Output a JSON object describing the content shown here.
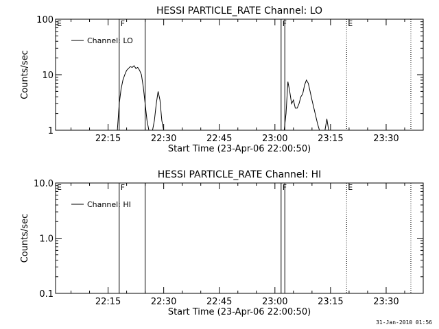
{
  "chart_data": [
    {
      "type": "line",
      "title": "HESSI PARTICLE_RATE Channel: LO",
      "xlabel": "Start Time (23-Apr-06 22:00:50)",
      "ylabel": "Counts/sec",
      "y_scale": "log",
      "ylim": [
        1,
        100
      ],
      "y_ticks": [
        1,
        10,
        100
      ],
      "y_tick_labels": [
        "1",
        "10",
        "100"
      ],
      "xlim": [
        "22:00:50",
        "23:40:00"
      ],
      "x_ticks": [
        "22:15",
        "22:30",
        "22:45",
        "23:00",
        "23:15",
        "23:30"
      ],
      "legend": {
        "placement": "top-left",
        "entries": [
          "Channel: LO"
        ]
      },
      "series": [
        {
          "name": "Channel: LO",
          "x": [
            "22:17:30",
            "22:18:00",
            "22:18:30",
            "22:19:00",
            "22:19:30",
            "22:20:00",
            "22:20:30",
            "22:21:00",
            "22:21:30",
            "22:22:00",
            "22:22:30",
            "22:23:00",
            "22:23:30",
            "22:24:00",
            "22:24:30",
            "22:25:00",
            "22:25:30",
            "22:26:00",
            "22:26:30",
            "22:27:00",
            "22:27:30",
            "22:28:00",
            "22:28:30",
            "22:29:00",
            "22:29:30",
            "22:30:00",
            "22:30:30",
            "22:31:00",
            "23:02:30",
            "23:03:00",
            "23:03:30",
            "23:04:00",
            "23:04:30",
            "23:05:00",
            "23:05:30",
            "23:06:00",
            "23:06:30",
            "23:07:00",
            "23:07:30",
            "23:08:00",
            "23:08:30",
            "23:09:00",
            "23:09:30",
            "23:10:00",
            "23:10:30",
            "23:11:00",
            "23:11:30",
            "23:12:00",
            "23:12:30",
            "23:13:00",
            "23:13:30",
            "23:14:00",
            "23:14:30",
            "23:15:00"
          ],
          "values": [
            1,
            3,
            5.5,
            8,
            10,
            12,
            13,
            14,
            13.5,
            14.5,
            13,
            13.5,
            12,
            10,
            6,
            3,
            1.5,
            1,
            1,
            1,
            1.5,
            3,
            5,
            3.5,
            1.5,
            1,
            null,
            null,
            1,
            2,
            7.5,
            5,
            3,
            3.5,
            2.5,
            2.5,
            3,
            4,
            4.5,
            6.5,
            8,
            7,
            5,
            3.5,
            2.5,
            1.8,
            1.3,
            1,
            null,
            null,
            1,
            1.6,
            1,
            null
          ]
        }
      ],
      "markers": [
        {
          "label": "E",
          "time": "22:00:50",
          "style": "none"
        },
        {
          "label": "F",
          "time": "22:18:00",
          "style": "solid"
        },
        {
          "label": "",
          "time": "22:25:00",
          "style": "solid"
        },
        {
          "label": "F",
          "time": "23:01:40",
          "style": "solid"
        },
        {
          "label": "",
          "time": "23:02:40",
          "style": "solid"
        },
        {
          "label": "E",
          "time": "23:19:20",
          "style": "dotted"
        },
        {
          "label": "",
          "time": "23:36:40",
          "style": "dotted"
        }
      ]
    },
    {
      "type": "line",
      "title": "HESSI PARTICLE_RATE Channel: HI",
      "xlabel": "Start Time (23-Apr-06 22:00:50)",
      "ylabel": "Counts/sec",
      "y_scale": "log",
      "ylim": [
        0.1,
        10
      ],
      "y_ticks": [
        0.1,
        1,
        10
      ],
      "y_tick_labels": [
        "0.1",
        "1.0",
        "10.0"
      ],
      "xlim": [
        "22:00:50",
        "23:40:00"
      ],
      "x_ticks": [
        "22:15",
        "22:30",
        "22:45",
        "23:00",
        "23:15",
        "23:30"
      ],
      "legend": {
        "placement": "top-left",
        "entries": [
          "Channel: HI"
        ]
      },
      "series": [
        {
          "name": "Channel: HI",
          "x": [],
          "values": []
        }
      ],
      "markers": [
        {
          "label": "E",
          "time": "22:00:50",
          "style": "none"
        },
        {
          "label": "F",
          "time": "22:18:00",
          "style": "solid"
        },
        {
          "label": "",
          "time": "22:25:00",
          "style": "solid"
        },
        {
          "label": "F",
          "time": "23:01:40",
          "style": "solid"
        },
        {
          "label": "",
          "time": "23:02:40",
          "style": "solid"
        },
        {
          "label": "E",
          "time": "23:19:20",
          "style": "dotted"
        },
        {
          "label": "",
          "time": "23:36:40",
          "style": "dotted"
        }
      ]
    }
  ],
  "footer": {
    "timestamp": "31-Jan-2010 01:56"
  }
}
